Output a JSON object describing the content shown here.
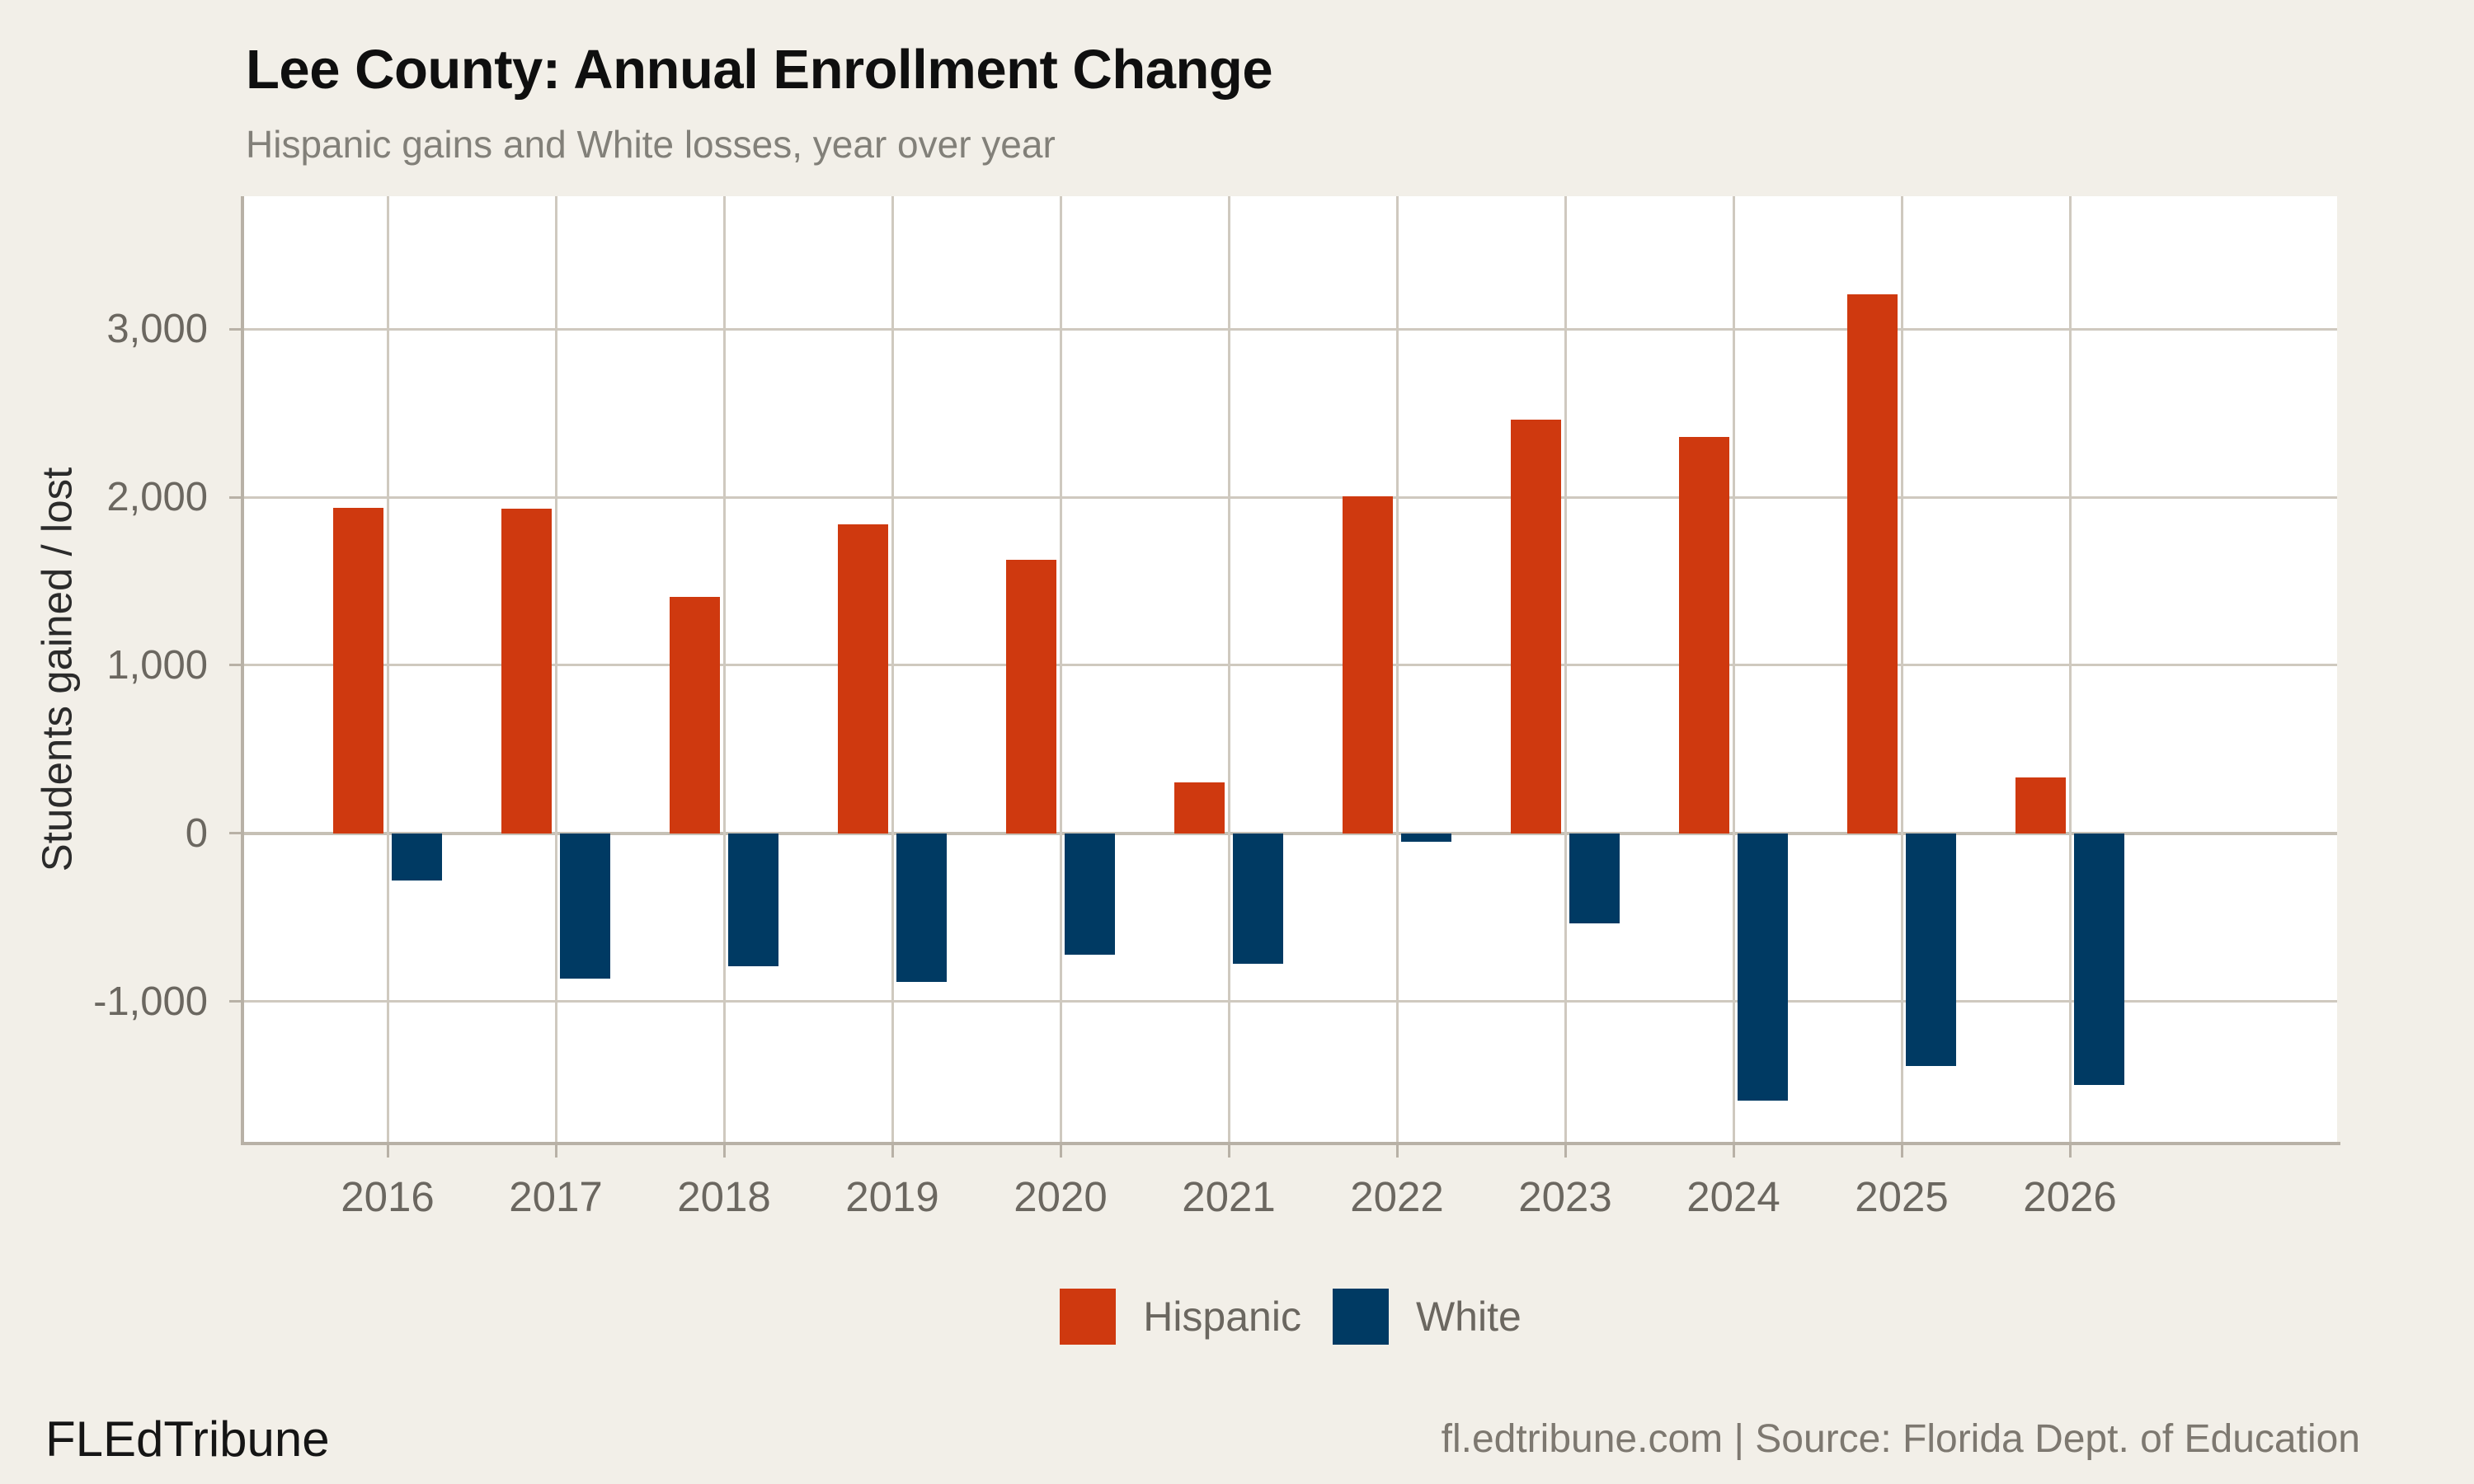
{
  "header": {
    "title": "Lee County: Annual Enrollment Change",
    "subtitle": "Hispanic gains and White losses, year over year"
  },
  "chart_data": {
    "type": "bar",
    "title": "Lee County: Annual Enrollment Change",
    "subtitle": "Hispanic gains and White losses, year over year",
    "categories": [
      "2016",
      "2017",
      "2018",
      "2019",
      "2020",
      "2021",
      "2022",
      "2023",
      "2024",
      "2025",
      "2026"
    ],
    "series": [
      {
        "name": "Hispanic",
        "color": "#cf390f",
        "values": [
          1935,
          1930,
          1405,
          1840,
          1625,
          305,
          2005,
          2460,
          2360,
          3205,
          335
        ]
      },
      {
        "name": "White",
        "color": "#003a63",
        "values": [
          -280,
          -865,
          -790,
          -885,
          -720,
          -775,
          -50,
          -535,
          -1590,
          -1385,
          -1495
        ]
      }
    ],
    "xlabel": "",
    "ylabel": "Students gained / lost",
    "ylim": [
      -1835,
      3790
    ],
    "ytick_values": [
      3000,
      2000,
      1000,
      0,
      -1000
    ],
    "ytick_labels": [
      "3,000",
      "2,000",
      "1,000",
      "0",
      "-1,000"
    ],
    "grid": true,
    "legend_position": "bottom",
    "theme": {
      "background": "#f2efe8",
      "plot_background": "#ffffff",
      "grid_color": "#cfc9bf",
      "axis_color": "#b8b1a6",
      "tick_label_color": "#6b6760"
    }
  },
  "legend": {
    "items": [
      {
        "label": "Hispanic",
        "color": "#cf390f"
      },
      {
        "label": "White",
        "color": "#003a63"
      }
    ]
  },
  "footer": {
    "brand": "FLEdTribune",
    "source": "fl.edtribune.com | Source: Florida Dept. of Education"
  }
}
